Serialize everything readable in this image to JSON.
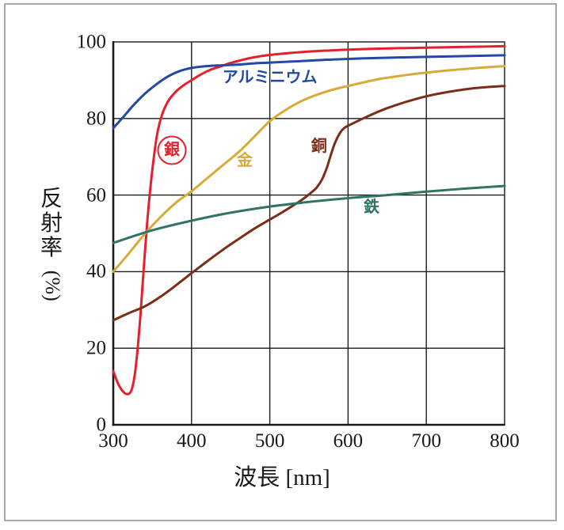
{
  "figure": {
    "background": "#ffffff",
    "border_color": "#a9a9a9"
  },
  "chart_data": {
    "type": "line",
    "title": "",
    "xlabel": "波長 [nm]",
    "ylabel": "反射率 (%)",
    "x_range": [
      300,
      800
    ],
    "y_range": [
      0,
      100
    ],
    "x_ticks": [
      300,
      400,
      500,
      600,
      700,
      800
    ],
    "y_ticks": [
      0,
      20,
      40,
      60,
      80,
      100
    ],
    "grid": true,
    "axis_color": "#1a1a1a",
    "legend_position": "inline-labels",
    "series": [
      {
        "name": "銀",
        "metal": "silver",
        "color": "#e5202c",
        "label": {
          "text": "銀",
          "x": 375,
          "y": 71.7,
          "circled": true
        },
        "points": [
          [
            300,
            14
          ],
          [
            306,
            10.8
          ],
          [
            312,
            8.8
          ],
          [
            318,
            8
          ],
          [
            323,
            8.9
          ],
          [
            327,
            12.5
          ],
          [
            331,
            19.5
          ],
          [
            335,
            29.5
          ],
          [
            339,
            41
          ],
          [
            343,
            52
          ],
          [
            347,
            61
          ],
          [
            351,
            68.5
          ],
          [
            356,
            75.8
          ],
          [
            362,
            80.8
          ],
          [
            370,
            84.5
          ],
          [
            380,
            87
          ],
          [
            390,
            88.7
          ],
          [
            400,
            90
          ],
          [
            412,
            91.5
          ],
          [
            424,
            92.7
          ],
          [
            437,
            93.6
          ],
          [
            450,
            94.5
          ],
          [
            465,
            95.3
          ],
          [
            480,
            96
          ],
          [
            500,
            96.6
          ],
          [
            530,
            97.2
          ],
          [
            560,
            97.6
          ],
          [
            600,
            98
          ],
          [
            650,
            98.3
          ],
          [
            700,
            98.5
          ],
          [
            750,
            98.7
          ],
          [
            800,
            98.9
          ]
        ]
      },
      {
        "name": "アルミニウム",
        "metal": "aluminum",
        "color": "#2249a5",
        "label": {
          "text": "アルミニウム",
          "x": 500,
          "y": 90.7,
          "circled": false
        },
        "points": [
          [
            300,
            77.5
          ],
          [
            312,
            80.2
          ],
          [
            325,
            83.3
          ],
          [
            340,
            86.4
          ],
          [
            355,
            88.9
          ],
          [
            370,
            91
          ],
          [
            385,
            92.4
          ],
          [
            400,
            93.2
          ],
          [
            420,
            93.7
          ],
          [
            440,
            93.9
          ],
          [
            460,
            94.1
          ],
          [
            480,
            94.4
          ],
          [
            500,
            94.6
          ],
          [
            540,
            95
          ],
          [
            580,
            95.4
          ],
          [
            620,
            95.7
          ],
          [
            660,
            95.9
          ],
          [
            700,
            96.1
          ],
          [
            750,
            96.3
          ],
          [
            800,
            96.5
          ]
        ]
      },
      {
        "name": "金",
        "metal": "gold",
        "color": "#d7ab3a",
        "label": {
          "text": "金",
          "x": 468,
          "y": 69.0,
          "circled": false
        },
        "points": [
          [
            300,
            40
          ],
          [
            320,
            44.8
          ],
          [
            340,
            49.8
          ],
          [
            360,
            54.2
          ],
          [
            380,
            58
          ],
          [
            400,
            61
          ],
          [
            420,
            64.4
          ],
          [
            440,
            67.8
          ],
          [
            460,
            71.2
          ],
          [
            480,
            75.2
          ],
          [
            500,
            79.3
          ],
          [
            520,
            82.2
          ],
          [
            540,
            84.5
          ],
          [
            560,
            86.2
          ],
          [
            580,
            87.5
          ],
          [
            600,
            88.5
          ],
          [
            640,
            90.3
          ],
          [
            680,
            91.5
          ],
          [
            720,
            92.4
          ],
          [
            760,
            93.1
          ],
          [
            800,
            93.7
          ]
        ]
      },
      {
        "name": "銅",
        "metal": "copper",
        "color": "#7c2d17",
        "label": {
          "text": "銅",
          "x": 563,
          "y": 72.7,
          "circled": false
        },
        "points": [
          [
            300,
            27.3
          ],
          [
            320,
            29.2
          ],
          [
            340,
            30.9
          ],
          [
            360,
            33.4
          ],
          [
            380,
            36.4
          ],
          [
            400,
            39.6
          ],
          [
            420,
            42.7
          ],
          [
            440,
            45.7
          ],
          [
            460,
            48.5
          ],
          [
            480,
            51.2
          ],
          [
            500,
            53.6
          ],
          [
            515,
            55.4
          ],
          [
            530,
            57.3
          ],
          [
            542,
            58.9
          ],
          [
            552,
            60.5
          ],
          [
            560,
            62
          ],
          [
            567,
            64.2
          ],
          [
            573,
            67.2
          ],
          [
            578,
            70.5
          ],
          [
            583,
            73.5
          ],
          [
            589,
            76
          ],
          [
            595,
            77.5
          ],
          [
            605,
            78.6
          ],
          [
            618,
            79.9
          ],
          [
            632,
            81.2
          ],
          [
            650,
            82.7
          ],
          [
            670,
            84.1
          ],
          [
            700,
            85.8
          ],
          [
            730,
            87
          ],
          [
            760,
            87.9
          ],
          [
            800,
            88.5
          ]
        ]
      },
      {
        "name": "鉄",
        "metal": "iron",
        "color": "#2e7568",
        "label": {
          "text": "鉄",
          "x": 630,
          "y": 56.8,
          "circled": false
        },
        "points": [
          [
            300,
            47.5
          ],
          [
            350,
            50.8
          ],
          [
            400,
            53.3
          ],
          [
            450,
            55.4
          ],
          [
            500,
            57
          ],
          [
            550,
            58.2
          ],
          [
            600,
            59.2
          ],
          [
            650,
            60
          ],
          [
            700,
            60.9
          ],
          [
            750,
            61.7
          ],
          [
            800,
            62.4
          ]
        ]
      }
    ]
  }
}
